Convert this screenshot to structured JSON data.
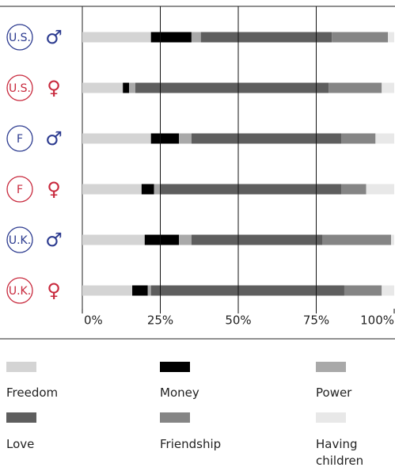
{
  "chart_data": {
    "type": "stacked-bar",
    "orientation": "horizontal",
    "categories": [
      "U.S.",
      "U.S.",
      "F",
      "F",
      "U.K.",
      "U.K."
    ],
    "symbols": [
      "♂",
      "♀",
      "♂",
      "♀",
      "♂",
      "♀"
    ],
    "category_colors": [
      "#2b3a8f",
      "#c8283c",
      "#2b3a8f",
      "#c8283c",
      "#2b3a8f",
      "#c8283c"
    ],
    "series": [
      {
        "name": "Freedom",
        "color": "#d4d4d4",
        "values": [
          22,
          13,
          22,
          19,
          20,
          16
        ]
      },
      {
        "name": "Money",
        "color": "#000000",
        "values": [
          13,
          2,
          9,
          4,
          11,
          5
        ]
      },
      {
        "name": "Power",
        "color": "#a9a9a9",
        "values": [
          3,
          2,
          4,
          2,
          4,
          1
        ]
      },
      {
        "name": "Love",
        "color": "#5e5e5e",
        "values": [
          42,
          62,
          48,
          58,
          42,
          62
        ]
      },
      {
        "name": "Friendship",
        "color": "#858585",
        "values": [
          18,
          17,
          11,
          8,
          22,
          12
        ]
      },
      {
        "name": "Having children",
        "color": "#e8e8e8",
        "values": [
          2,
          4,
          6,
          9,
          1,
          4
        ]
      }
    ],
    "xlim": [
      0,
      100
    ],
    "xticks": [
      {
        "value": 0,
        "label": "0%"
      },
      {
        "value": 25,
        "label": "25%"
      },
      {
        "value": 50,
        "label": "50%"
      },
      {
        "value": 75,
        "label": "75%"
      },
      {
        "value": 100,
        "label": "100%"
      }
    ],
    "grid": true
  }
}
